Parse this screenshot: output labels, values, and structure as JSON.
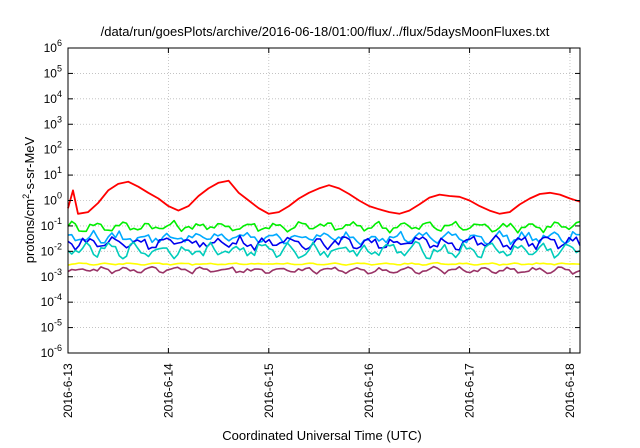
{
  "chart_data": {
    "type": "line",
    "title": "/data/run/goesPlots/archive/2016-06-18/01:00/flux/../flux/5daysMoonFluxes.txt",
    "xlabel": "Coordinated Universal Time (UTC)",
    "ylabel": {
      "prefix": "protons/cm",
      "sup": "2",
      "suffix": "-s-sr-MeV"
    },
    "x_ticks": [
      "2016-6-13",
      "2016-6-14",
      "2016-6-15",
      "2016-6-16",
      "2016-6-17",
      "2016-6-18"
    ],
    "xlim_days": [
      0,
      5.1
    ],
    "y_scale": "log",
    "ylim": [
      1e-06,
      1000000.0
    ],
    "y_tick_exponents": [
      -6,
      -5,
      -4,
      -3,
      -2,
      -1,
      0,
      1,
      2,
      3,
      4,
      5,
      6
    ],
    "grid": true,
    "legend": "none",
    "series": [
      {
        "color": "#ff0000",
        "x": [
          0,
          0.05,
          0.1,
          0.2,
          0.3,
          0.4,
          0.5,
          0.6,
          0.7,
          0.8,
          0.9,
          1.0,
          1.1,
          1.2,
          1.3,
          1.4,
          1.5,
          1.6,
          1.7,
          1.8,
          1.9,
          2.0,
          2.1,
          2.2,
          2.3,
          2.4,
          2.5,
          2.6,
          2.7,
          2.8,
          2.9,
          3.0,
          3.1,
          3.2,
          3.3,
          3.4,
          3.5,
          3.6,
          3.7,
          3.8,
          3.9,
          4.0,
          4.1,
          4.2,
          4.3,
          4.4,
          4.5,
          4.6,
          4.7,
          4.8,
          4.9,
          5.0,
          5.1
        ],
        "y": [
          0.5,
          2.5,
          0.3,
          0.35,
          0.8,
          2.5,
          4.5,
          5.5,
          3.5,
          2.0,
          1.2,
          0.6,
          0.4,
          0.6,
          1.5,
          3.0,
          5.0,
          6.0,
          2.0,
          1.0,
          0.5,
          0.3,
          0.35,
          0.6,
          1.2,
          2.0,
          3.0,
          4.0,
          3.0,
          1.8,
          1.0,
          0.6,
          0.45,
          0.35,
          0.3,
          0.4,
          0.7,
          1.3,
          1.7,
          1.5,
          1.4,
          1.0,
          0.6,
          0.4,
          0.3,
          0.35,
          0.7,
          1.2,
          1.8,
          2.0,
          1.7,
          1.2,
          0.9
        ]
      },
      {
        "color": "#00ee00",
        "base": 0.095,
        "jitter": 0.25,
        "x_from": 0,
        "x_to": 5.1
      },
      {
        "color": "#00aaff",
        "base": 0.035,
        "jitter": 0.3,
        "x_from": 0,
        "x_to": 5.1
      },
      {
        "color": "#0000ee",
        "base": 0.022,
        "jitter": 0.3,
        "x_from": 0,
        "x_to": 5.1
      },
      {
        "color": "#00ccbb",
        "base": 0.011,
        "jitter": 0.35,
        "x_from": 0,
        "x_to": 5.1
      },
      {
        "color": "#ffff00",
        "base": 0.0032,
        "jitter": 0.05,
        "x_from": 0,
        "x_to": 5.1
      },
      {
        "color": "#993366",
        "base": 0.0018,
        "jitter": 0.15,
        "x_from": 0,
        "x_to": 5.1
      }
    ]
  }
}
